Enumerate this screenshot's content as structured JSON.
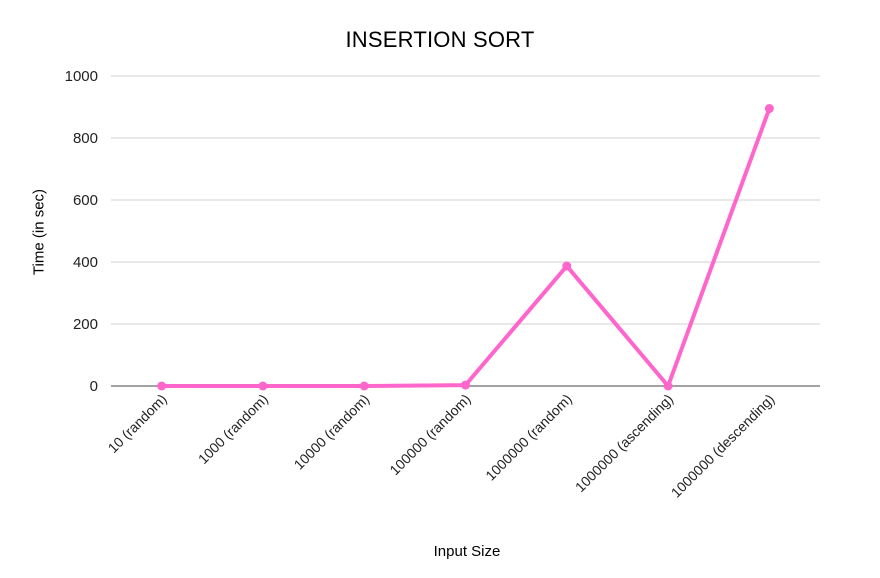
{
  "chart_data": {
    "type": "line",
    "title": "INSERTION SORT",
    "xlabel": "Input Size",
    "ylabel": "Time (in sec)",
    "categories": [
      "10 (random)",
      "1000 (random)",
      "10000 (random)",
      "100000 (random)",
      "1000000 (random)",
      "1000000 (ascending)",
      "1000000 (descending)"
    ],
    "series": [
      {
        "values": [
          0,
          0,
          0,
          3,
          387,
          0,
          895
        ],
        "color": "#ff66cc"
      }
    ],
    "ylim": [
      0,
      1000
    ],
    "yticks": [
      0,
      200,
      400,
      600,
      800,
      1000
    ],
    "grid": true,
    "legend": "none"
  }
}
